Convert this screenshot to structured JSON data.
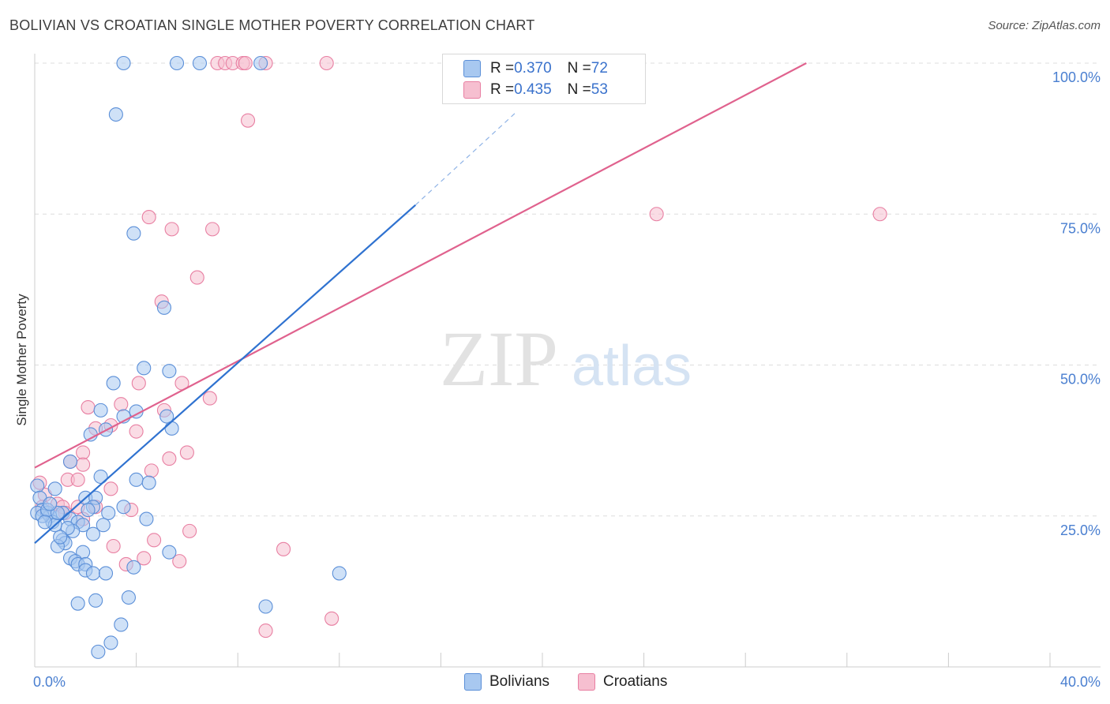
{
  "title": "BOLIVIAN VS CROATIAN SINGLE MOTHER POVERTY CORRELATION CHART",
  "source": "Source: ZipAtlas.com",
  "watermark": {
    "zip": "ZIP",
    "atlas": "atlas"
  },
  "legend": {
    "rows": [
      {
        "r_label": "R = ",
        "r_value": "0.370",
        "n_label": "N = ",
        "n_value": "72"
      },
      {
        "r_label": "R = ",
        "r_value": "0.435",
        "n_label": "N = ",
        "n_value": "53"
      }
    ],
    "bottom": [
      "Bolivians",
      "Croatians"
    ]
  },
  "colors": {
    "blue_fill": "#a8c8f0",
    "blue_stroke": "#5b8fd8",
    "blue_line": "#2f72d0",
    "pink_fill": "#f6bfd0",
    "pink_stroke": "#e87fa2",
    "pink_line": "#e0628e",
    "tick": "#4a7fd0",
    "grid": "#dddddd"
  },
  "chart_data": {
    "type": "scatter",
    "title": "BOLIVIAN VS CROATIAN SINGLE MOTHER POVERTY CORRELATION CHART",
    "xlabel": "",
    "ylabel": "Single Mother Poverty",
    "xlim": [
      0,
      40
    ],
    "ylim": [
      0,
      100
    ],
    "x_tick_labels": [
      "0.0%",
      "40.0%"
    ],
    "y_ticks": [
      25,
      50,
      75,
      100
    ],
    "y_tick_labels": [
      "25.0%",
      "50.0%",
      "75.0%",
      "100.0%"
    ],
    "grid": true,
    "series": [
      {
        "name": "Bolivians",
        "r": 0.37,
        "n": 72,
        "trend": {
          "x0": 0.0,
          "y0": 20.5,
          "x1": 15.0,
          "y1": 76.5,
          "dashed_to": {
            "x": 19.0,
            "y": 92.0
          }
        },
        "points": [
          [
            3.5,
            100
          ],
          [
            5.6,
            100
          ],
          [
            6.5,
            100
          ],
          [
            8.9,
            100
          ],
          [
            3.2,
            91.5
          ],
          [
            3.9,
            71.8
          ],
          [
            5.1,
            59.5
          ],
          [
            4.3,
            49.5
          ],
          [
            5.3,
            49
          ],
          [
            3.1,
            47
          ],
          [
            2.6,
            42.5
          ],
          [
            3.5,
            41.5
          ],
          [
            4.0,
            42.3
          ],
          [
            5.2,
            41.5
          ],
          [
            2.2,
            38.5
          ],
          [
            2.8,
            39.3
          ],
          [
            5.4,
            39.5
          ],
          [
            1.4,
            34
          ],
          [
            2.6,
            31.5
          ],
          [
            4.0,
            31
          ],
          [
            4.5,
            30.5
          ],
          [
            0.1,
            30
          ],
          [
            0.8,
            29.5
          ],
          [
            0.2,
            28
          ],
          [
            2.0,
            28
          ],
          [
            2.4,
            28
          ],
          [
            0.3,
            26
          ],
          [
            2.3,
            26.5
          ],
          [
            3.5,
            26.5
          ],
          [
            0.1,
            25.5
          ],
          [
            0.5,
            25.5
          ],
          [
            0.6,
            25
          ],
          [
            1.1,
            25.5
          ],
          [
            2.9,
            25.5
          ],
          [
            0.7,
            24
          ],
          [
            1.4,
            24.5
          ],
          [
            1.7,
            24
          ],
          [
            1.9,
            23.5
          ],
          [
            0.8,
            23.5
          ],
          [
            4.4,
            24.5
          ],
          [
            1.5,
            22.5
          ],
          [
            2.3,
            22
          ],
          [
            2.7,
            23.5
          ],
          [
            1.1,
            21
          ],
          [
            1.2,
            20.5
          ],
          [
            0.9,
            20
          ],
          [
            1.9,
            19
          ],
          [
            5.3,
            19
          ],
          [
            1.4,
            18
          ],
          [
            1.6,
            17.5
          ],
          [
            1.7,
            17
          ],
          [
            2.0,
            17
          ],
          [
            2.0,
            16
          ],
          [
            2.3,
            15.5
          ],
          [
            2.8,
            15.5
          ],
          [
            3.9,
            16.5
          ],
          [
            12.0,
            15.5
          ],
          [
            3.7,
            11.5
          ],
          [
            1.7,
            10.5
          ],
          [
            2.4,
            11
          ],
          [
            9.1,
            10
          ],
          [
            3.4,
            7
          ],
          [
            3.0,
            4
          ],
          [
            2.5,
            2.5
          ],
          [
            0.3,
            25
          ],
          [
            0.5,
            26
          ],
          [
            1.3,
            23
          ],
          [
            0.9,
            25.5
          ],
          [
            1.0,
            21.5
          ],
          [
            0.4,
            24
          ],
          [
            0.6,
            27
          ],
          [
            2.1,
            26
          ]
        ]
      },
      {
        "name": "Croatians",
        "r": 0.435,
        "n": 53,
        "trend": {
          "x0": 0.0,
          "y0": 33.0,
          "x1": 30.4,
          "y1": 100.0
        },
        "points": [
          [
            7.2,
            100
          ],
          [
            7.5,
            100
          ],
          [
            7.8,
            100
          ],
          [
            8.2,
            100
          ],
          [
            8.3,
            100
          ],
          [
            9.1,
            100
          ],
          [
            11.5,
            100
          ],
          [
            8.4,
            90.5
          ],
          [
            4.5,
            74.5
          ],
          [
            5.4,
            72.5
          ],
          [
            7.0,
            72.5
          ],
          [
            6.4,
            64.5
          ],
          [
            5.0,
            60.5
          ],
          [
            24.5,
            75
          ],
          [
            33.3,
            75
          ],
          [
            4.1,
            47
          ],
          [
            5.8,
            47
          ],
          [
            2.1,
            43
          ],
          [
            6.9,
            44.5
          ],
          [
            3.4,
            43.5
          ],
          [
            5.1,
            42.5
          ],
          [
            3.0,
            40
          ],
          [
            2.4,
            39.5
          ],
          [
            4.0,
            39
          ],
          [
            1.9,
            35.5
          ],
          [
            5.3,
            34.5
          ],
          [
            6.0,
            35.5
          ],
          [
            1.4,
            34
          ],
          [
            1.9,
            33.5
          ],
          [
            4.6,
            32.5
          ],
          [
            0.2,
            30.5
          ],
          [
            1.3,
            31
          ],
          [
            1.7,
            31
          ],
          [
            3.0,
            29.5
          ],
          [
            0.4,
            28.5
          ],
          [
            0.9,
            27
          ],
          [
            1.7,
            26.5
          ],
          [
            0.3,
            26.5
          ],
          [
            1.1,
            26.5
          ],
          [
            2.4,
            26.5
          ],
          [
            3.8,
            26
          ],
          [
            0.5,
            25.5
          ],
          [
            1.2,
            25.5
          ],
          [
            1.9,
            24.5
          ],
          [
            6.1,
            22.5
          ],
          [
            4.7,
            21
          ],
          [
            3.1,
            20
          ],
          [
            9.8,
            19.5
          ],
          [
            4.3,
            18
          ],
          [
            3.6,
            17
          ],
          [
            5.7,
            17.5
          ],
          [
            11.7,
            8
          ],
          [
            9.1,
            6
          ]
        ]
      }
    ]
  }
}
